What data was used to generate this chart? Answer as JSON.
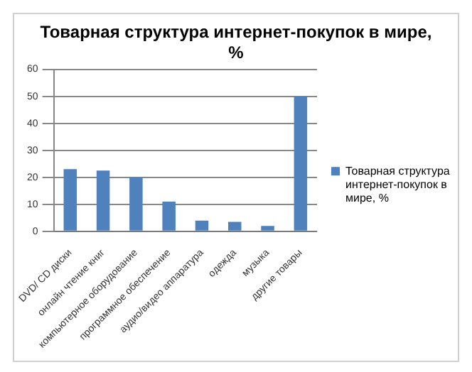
{
  "chart_data": {
    "type": "bar",
    "title": "Товарная структура интернет-покупок в мире, %",
    "categories": [
      "DVD/ CD диски",
      "онлайн чтение книг",
      "компьютерное оборудование",
      "программное обеспечение",
      "аудио/видео аппаратура",
      "одежда",
      "музыка",
      "другие товары"
    ],
    "series": [
      {
        "name": "Товарная структура интернет-покупок в мире, %",
        "color": "#4f81bd",
        "values": [
          23,
          22.5,
          20,
          11,
          4,
          3.5,
          2,
          50
        ]
      }
    ],
    "ylim": [
      0,
      60
    ],
    "yticks": [
      0,
      10,
      20,
      30,
      40,
      50,
      60
    ],
    "grid": "y",
    "legend": "right"
  }
}
